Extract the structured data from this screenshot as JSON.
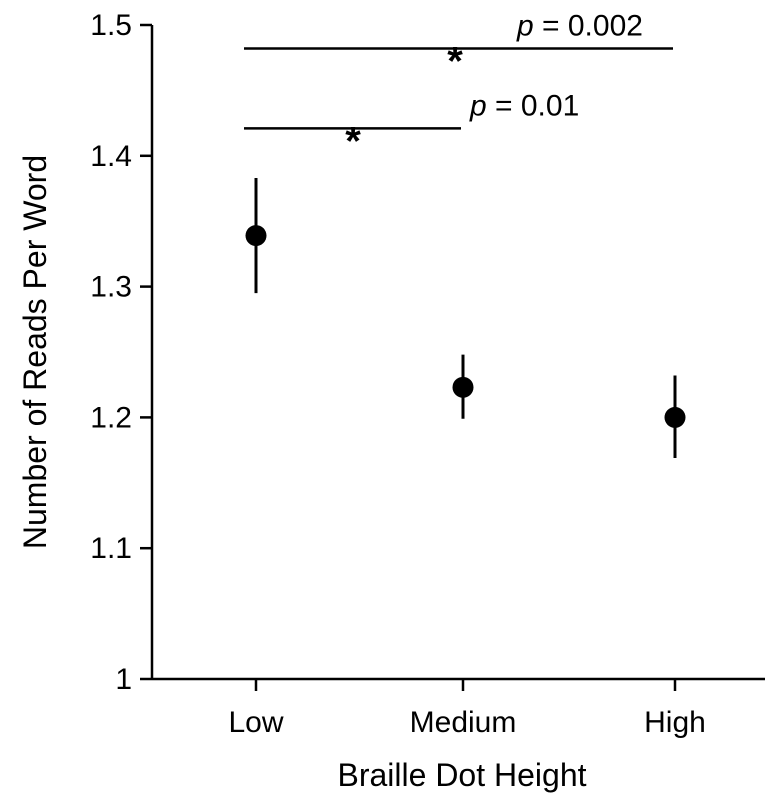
{
  "chart_data": {
    "type": "scatter",
    "title": "",
    "xlabel": "Braille Dot Height",
    "ylabel": "Number of Reads Per Word",
    "categories": [
      "Low",
      "Medium",
      "High"
    ],
    "values": [
      1.339,
      1.223,
      1.2
    ],
    "error_low": [
      1.295,
      1.199,
      1.169
    ],
    "error_high": [
      1.383,
      1.248,
      1.232
    ],
    "ylim": [
      1.0,
      1.5
    ],
    "yticks": [
      "1",
      "1.1",
      "1.2",
      "1.3",
      "1.4",
      "1.5"
    ],
    "grid": false,
    "legend": "none",
    "annotations": [
      {
        "from": "Low",
        "to": "High",
        "y": 1.482,
        "star": "*",
        "p_symbol": "p",
        "p_text": " = 0.002"
      },
      {
        "from": "Low",
        "to": "Medium",
        "y": 1.421,
        "star": "*",
        "p_symbol": "p",
        "p_text": " = 0.01"
      }
    ],
    "colors": {
      "marker": "#000000",
      "axis": "#000000"
    }
  }
}
